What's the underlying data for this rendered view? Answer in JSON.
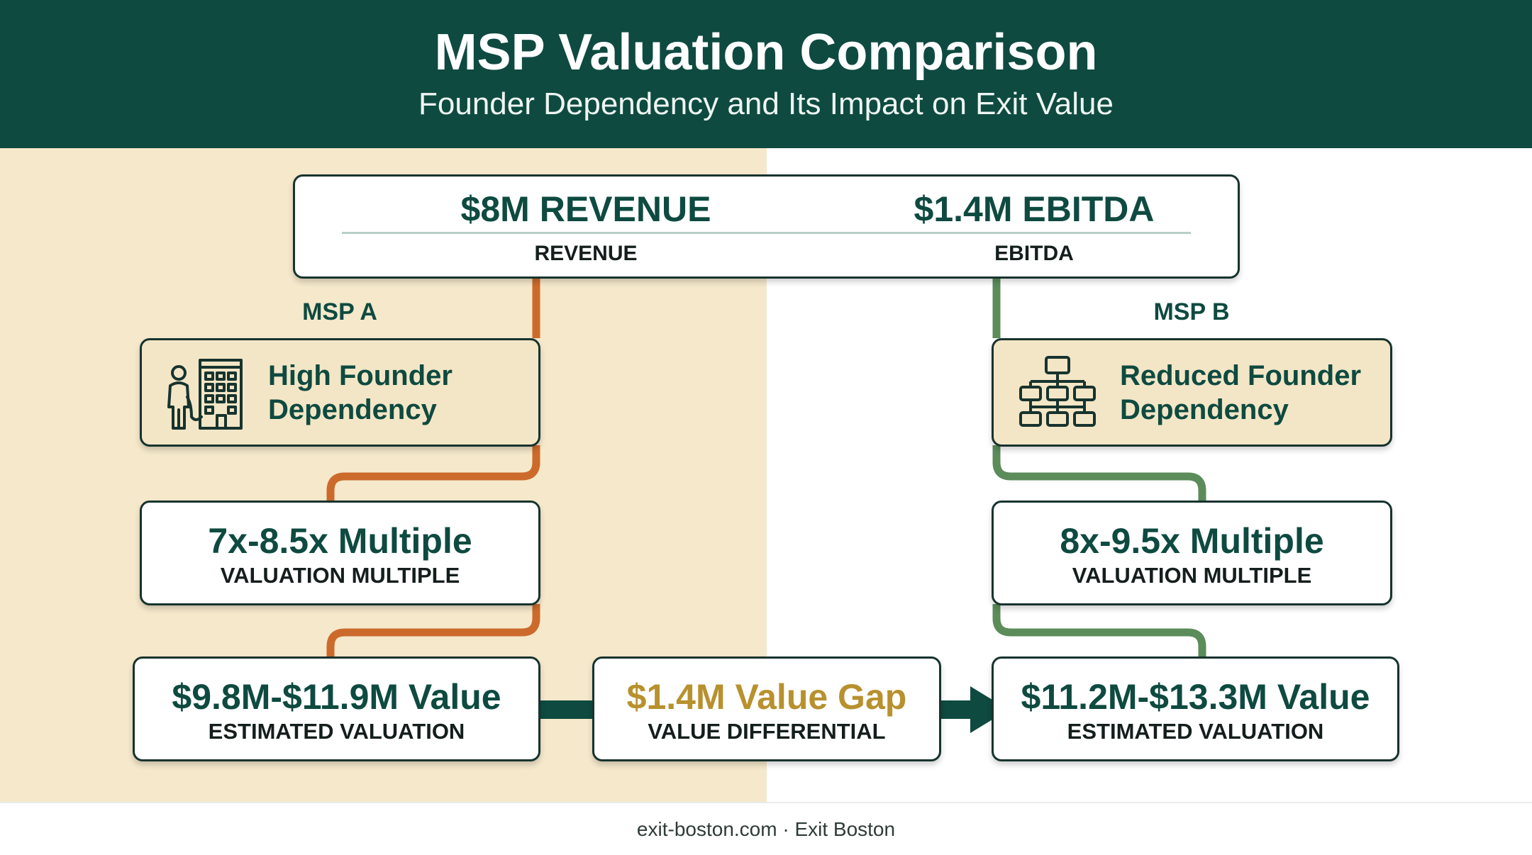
{
  "header": {
    "title": "MSP Valuation Comparison",
    "subtitle": "Founder Dependency and Its Impact on Exit Value"
  },
  "summary": {
    "revenue_value": "$8M REVENUE",
    "revenue_label": "REVENUE",
    "ebitda_value": "$1.4M EBITDA",
    "ebitda_label": "EBITDA"
  },
  "msp_a": {
    "label": "MSP A",
    "dependency_line1": "High Founder",
    "dependency_line2": "Dependency",
    "dependency_icon": "founder-building-icon",
    "multiple": "7x-8.5x Multiple",
    "multiple_label": "VALUATION MULTIPLE",
    "valuation": "$9.8M-$11.9M Value",
    "valuation_label": "ESTIMATED VALUATION"
  },
  "gap": {
    "value": "$1.4M Value Gap",
    "label": "VALUE DIFFERENTIAL"
  },
  "msp_b": {
    "label": "MSP B",
    "dependency_line1": "Reduced Founder",
    "dependency_line2": "Dependency",
    "dependency_icon": "org-chart-icon",
    "multiple": "8x-9.5x Multiple",
    "multiple_label": "VALUATION MULTIPLE",
    "valuation": "$11.2M-$13.3M Value",
    "valuation_label": "ESTIMATED VALUATION"
  },
  "footer": {
    "text": "exit-boston.com · Exit Boston"
  },
  "colors": {
    "header_bg": "#0e4a40",
    "left_panel_bg": "#f5e8cb",
    "msp_a_connector": "#cc6a2c",
    "msp_b_connector": "#5b8c5a",
    "gap_text": "#b8912e",
    "primary_text": "#0e4a40"
  }
}
